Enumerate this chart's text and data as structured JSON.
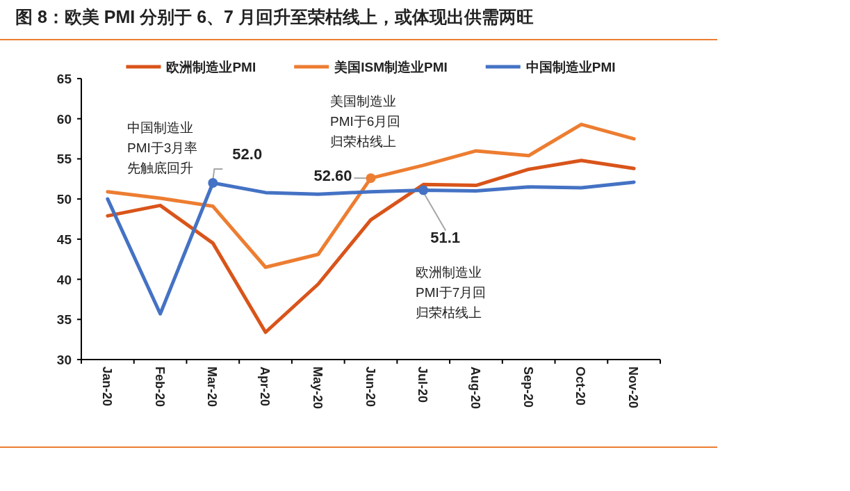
{
  "chart_data": {
    "type": "line",
    "title": "图 8：欧美 PMI 分别于 6、7 月回升至荣枯线上，或体现出供需两旺",
    "categories": [
      "Jan-20",
      "Feb-20",
      "Mar-20",
      "Apr-20",
      "May-20",
      "Jun-20",
      "Jul-20",
      "Aug-20",
      "Sep-20",
      "Oct-20",
      "Nov-20"
    ],
    "series": [
      {
        "name": "欧洲制造业PMI",
        "color": "#d9541a",
        "values": [
          47.9,
          49.2,
          44.5,
          33.4,
          39.4,
          47.4,
          51.8,
          51.7,
          53.7,
          54.8,
          53.8
        ]
      },
      {
        "name": "美国ISM制造业PMI",
        "color": "#ed7d31",
        "values": [
          50.9,
          50.1,
          49.1,
          41.5,
          43.1,
          52.6,
          54.2,
          56.0,
          55.4,
          59.3,
          57.5
        ]
      },
      {
        "name": "中国制造业PMI",
        "color": "#4472c4",
        "values": [
          50.0,
          35.7,
          52.0,
          50.8,
          50.6,
          50.9,
          51.1,
          51.0,
          51.5,
          51.4,
          52.1
        ]
      }
    ],
    "ylim": [
      30,
      65
    ],
    "yticks": [
      30,
      35,
      40,
      45,
      50,
      55,
      60,
      65
    ],
    "grid": false,
    "legend": "top",
    "marker": "none",
    "line_style": "solid",
    "annotations": [
      "中国制造业PMI于3月率先触底回升",
      "美国制造业PMI于6月回归荣枯线上",
      "欧洲制造业PMI于7月回归荣枯线上",
      {
        "text": "52.0",
        "x": "Mar-20",
        "y": 52.0
      },
      {
        "text": "52.60",
        "x": "Jun-20",
        "y": 52.6
      },
      {
        "text": "51.1",
        "x": "Jul-20",
        "y": 51.1
      }
    ]
  }
}
